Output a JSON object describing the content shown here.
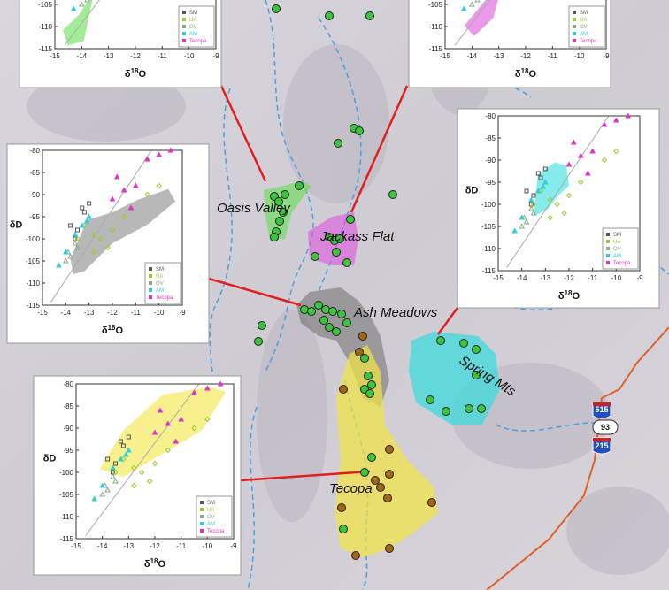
{
  "map": {
    "regions": [
      "Oasis Valley",
      "Jackass Flat",
      "Ash Meadows",
      "Spring Mts",
      "Tecopa"
    ],
    "shields": [
      "515",
      "93",
      "215"
    ]
  },
  "insets": {
    "x_label": {
      "symbol": "δ",
      "isotope": "18",
      "element": "O"
    },
    "y_label": "δD",
    "xlim": [
      -15,
      -9
    ],
    "ylim": [
      -115,
      -80
    ],
    "xticks": [
      -15,
      -14,
      -13,
      -12,
      -11,
      -10,
      -9
    ],
    "yticks": [
      -80,
      -85,
      -90,
      -95,
      -100,
      -105,
      -110,
      -115
    ],
    "series": [
      {
        "name": "SM",
        "color": "#555555",
        "x": [
          -13.3,
          -13.2,
          -13.5,
          -13.6,
          -13.0,
          -13.8
        ],
        "y": [
          -93,
          -94,
          -98,
          -100,
          -92,
          -97
        ]
      },
      {
        "name": "UA",
        "color": "#99cc33",
        "x": [
          -13.2,
          -12.8,
          -12.5,
          -12.0,
          -11.5,
          -10.5,
          -10.0,
          -12.2,
          -12.8,
          -13.5
        ],
        "y": [
          -97,
          -99,
          -100,
          -98,
          -95,
          -90,
          -88,
          -102,
          -103,
          -100
        ]
      },
      {
        "name": "OV",
        "color": "#88aa88",
        "x": [
          -13.5,
          -13.8,
          -14.0,
          -13.9,
          -13.6
        ],
        "y": [
          -102,
          -104,
          -105,
          -103,
          -101
        ]
      },
      {
        "name": "AM",
        "color": "#33ccdd",
        "x": [
          -13.0,
          -13.3,
          -13.6,
          -14.0,
          -14.3,
          -13.1
        ],
        "y": [
          -95,
          -97,
          -99,
          -103,
          -106,
          -96
        ]
      },
      {
        "name": "Tecopa",
        "color": "#dd33cc",
        "x": [
          -10.5,
          -10.0,
          -11.0,
          -11.5,
          -12.0,
          -9.5,
          -11.2,
          -11.8
        ],
        "y": [
          -82,
          -81,
          -88,
          -89,
          -91,
          -80,
          -93,
          -86
        ]
      }
    ]
  }
}
